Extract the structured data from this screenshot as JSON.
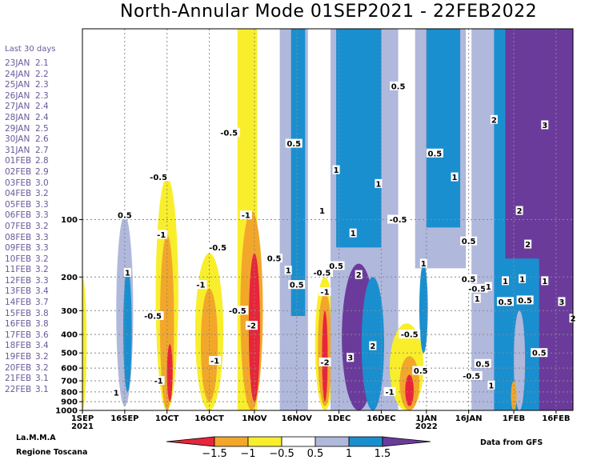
{
  "chart_data": {
    "type": "heatmap",
    "title": "North-Annular Mode 01SEP2021 - 22FEB2022",
    "x_ticks": [
      "1SEP",
      "16SEP",
      "1OCT",
      "16OCT",
      "1NOV",
      "16NOV",
      "1DEC",
      "16DEC",
      "1JAN",
      "16JAN",
      "1FEB",
      "16FEB"
    ],
    "x_tick_days": [
      0,
      15,
      30,
      45,
      61,
      76,
      91,
      106,
      122,
      137,
      153,
      168
    ],
    "x_year_labels": [
      {
        "tick": "1SEP",
        "year": "2021"
      },
      {
        "tick": "1JAN",
        "year": "2022"
      }
    ],
    "x_range_days": [
      0,
      174
    ],
    "y_axis": "pressure (hPa), log scale, inverted",
    "y_ticks": [
      100,
      200,
      300,
      400,
      500,
      600,
      700,
      800,
      900,
      1000
    ],
    "y_range": [
      1000,
      10
    ],
    "grid": true,
    "legend": {
      "placement": "bottom",
      "labels": [
        "-1.5",
        "-1",
        "-0.5",
        "0.5",
        "1",
        "1.5"
      ],
      "colors": [
        "#e8253a",
        "#f2a72a",
        "#f8ee2c",
        "#ffffff",
        "#b0b8dc",
        "#1a8fcf",
        "#6b3b9c"
      ]
    },
    "contour_labels": [
      {
        "text": "0.5",
        "day": 15,
        "p": 95
      },
      {
        "text": "1",
        "day": 16,
        "p": 190
      },
      {
        "text": "1",
        "day": 12,
        "p": 810
      },
      {
        "text": "-0.5",
        "day": 27,
        "p": 60
      },
      {
        "text": "-1",
        "day": 28,
        "p": 120
      },
      {
        "text": "-0.5",
        "day": 25,
        "p": 320
      },
      {
        "text": "-1",
        "day": 27,
        "p": 700
      },
      {
        "text": "-1",
        "day": 42,
        "p": 220
      },
      {
        "text": "-1",
        "day": 47,
        "p": 550
      },
      {
        "text": "-0.5",
        "day": 48,
        "p": 140
      },
      {
        "text": "-0.5",
        "day": 52,
        "p": 35
      },
      {
        "text": "-1",
        "day": 58,
        "p": 95
      },
      {
        "text": "-0.5",
        "day": 55,
        "p": 300
      },
      {
        "text": "-2",
        "day": 60,
        "p": 360
      },
      {
        "text": "0.5",
        "day": 68,
        "p": 160
      },
      {
        "text": "0.5",
        "day": 75,
        "p": 40
      },
      {
        "text": "1",
        "day": 73,
        "p": 185
      },
      {
        "text": "0.5",
        "day": 76,
        "p": 220
      },
      {
        "text": "-0.5",
        "day": 85,
        "p": 190
      },
      {
        "text": "-1",
        "day": 86,
        "p": 240
      },
      {
        "text": "-2",
        "day": 86,
        "p": 560
      },
      {
        "text": "0.5",
        "day": 90,
        "p": 175
      },
      {
        "text": "1",
        "day": 85,
        "p": 90
      },
      {
        "text": "1",
        "day": 90,
        "p": 55
      },
      {
        "text": "1",
        "day": 96,
        "p": 118
      },
      {
        "text": "2",
        "day": 98,
        "p": 195
      },
      {
        "text": "3",
        "day": 95,
        "p": 530
      },
      {
        "text": "2",
        "day": 103,
        "p": 460
      },
      {
        "text": "1",
        "day": 105,
        "p": 65
      },
      {
        "text": "0.5",
        "day": 112,
        "p": 20
      },
      {
        "text": "-0.5",
        "day": 112,
        "p": 100
      },
      {
        "text": "-0.5",
        "day": 116,
        "p": 400
      },
      {
        "text": "1",
        "day": 121,
        "p": 170
      },
      {
        "text": "0.5",
        "day": 120,
        "p": 620
      },
      {
        "text": "-1",
        "day": 109,
        "p": 800
      },
      {
        "text": "0.5",
        "day": 125,
        "p": 45
      },
      {
        "text": "1",
        "day": 132,
        "p": 60
      },
      {
        "text": "0.5",
        "day": 137,
        "p": 205
      },
      {
        "text": "-0.5",
        "day": 140,
        "p": 230
      },
      {
        "text": "1",
        "day": 140,
        "p": 260
      },
      {
        "text": "0.5",
        "day": 137,
        "p": 130
      },
      {
        "text": "-0.5",
        "day": 138,
        "p": 660
      },
      {
        "text": "0.5",
        "day": 142,
        "p": 570
      },
      {
        "text": "1",
        "day": 145,
        "p": 740
      },
      {
        "text": "1",
        "day": 144,
        "p": 225
      },
      {
        "text": "2",
        "day": 146,
        "p": 30
      },
      {
        "text": "1",
        "day": 150,
        "p": 210
      },
      {
        "text": "0.5",
        "day": 150,
        "p": 270
      },
      {
        "text": "2",
        "day": 155,
        "p": 90
      },
      {
        "text": "1",
        "day": 156,
        "p": 205
      },
      {
        "text": "0.5",
        "day": 157,
        "p": 265
      },
      {
        "text": "1",
        "day": 164,
        "p": 210
      },
      {
        "text": "2",
        "day": 158,
        "p": 135
      },
      {
        "text": "3",
        "day": 164,
        "p": 32
      },
      {
        "text": "3",
        "day": 170,
        "p": 270
      },
      {
        "text": "2",
        "day": 174,
        "p": 330
      },
      {
        "text": "0.5",
        "day": 162,
        "p": 500
      }
    ]
  },
  "sidebar": {
    "header": "Last 30 days",
    "rows": [
      {
        "date": "23JAN",
        "value": "2.1"
      },
      {
        "date": "24JAN",
        "value": "2.2"
      },
      {
        "date": "25JAN",
        "value": "2.3"
      },
      {
        "date": "26JAN",
        "value": "2.3"
      },
      {
        "date": "27JAN",
        "value": "2.4"
      },
      {
        "date": "28JAN",
        "value": "2.4"
      },
      {
        "date": "29JAN",
        "value": "2.5"
      },
      {
        "date": "30JAN",
        "value": "2.6"
      },
      {
        "date": "31JAN",
        "value": "2.7"
      },
      {
        "date": "01FEB",
        "value": "2.8"
      },
      {
        "date": "02FEB",
        "value": "2.9"
      },
      {
        "date": "03FEB",
        "value": "3.0"
      },
      {
        "date": "04FEB",
        "value": "3.2"
      },
      {
        "date": "05FEB",
        "value": "3.3"
      },
      {
        "date": "06FEB",
        "value": "3.3"
      },
      {
        "date": "07FEB",
        "value": "3.2"
      },
      {
        "date": "08FEB",
        "value": "3.3"
      },
      {
        "date": "09FEB",
        "value": "3.3"
      },
      {
        "date": "10FEB",
        "value": "3.2"
      },
      {
        "date": "11FEB",
        "value": "3.2"
      },
      {
        "date": "12FEB",
        "value": "3.3"
      },
      {
        "date": "13FEB",
        "value": "3.4"
      },
      {
        "date": "14FEB",
        "value": "3.7"
      },
      {
        "date": "15FEB",
        "value": "3.8"
      },
      {
        "date": "16FEB",
        "value": "3.8"
      },
      {
        "date": "17FEB",
        "value": "3.6"
      },
      {
        "date": "18FEB",
        "value": "3.4"
      },
      {
        "date": "19FEB",
        "value": "3.2"
      },
      {
        "date": "20FEB",
        "value": "3.2"
      },
      {
        "date": "21FEB",
        "value": "3.1"
      },
      {
        "date": "22FEB",
        "value": "3.1"
      }
    ]
  },
  "credits": {
    "org_line1": "La.M.M.A",
    "org_line2": "Regione Toscana",
    "source": "Data from GFS"
  }
}
